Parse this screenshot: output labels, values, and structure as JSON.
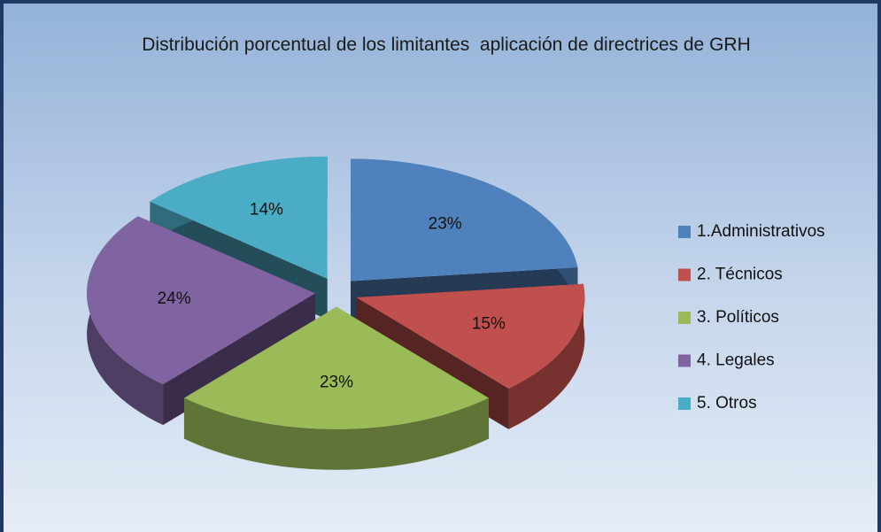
{
  "chart_data": {
    "type": "pie3d",
    "title": "Distribución porcentual de los limitantes  aplicación de directrices de GRH",
    "categories": [
      "1.Administrativos",
      "2. Técnicos",
      "3. Políticos",
      "4. Legales",
      "5. Otros"
    ],
    "values": [
      23,
      15,
      23,
      24,
      14
    ],
    "value_labels": [
      "23%",
      "15%",
      "23%",
      "24%",
      "14%"
    ],
    "colors": [
      "#4f81bd",
      "#c0504d",
      "#9bbb59",
      "#8064a2",
      "#4bacc6"
    ],
    "legend": "right"
  }
}
